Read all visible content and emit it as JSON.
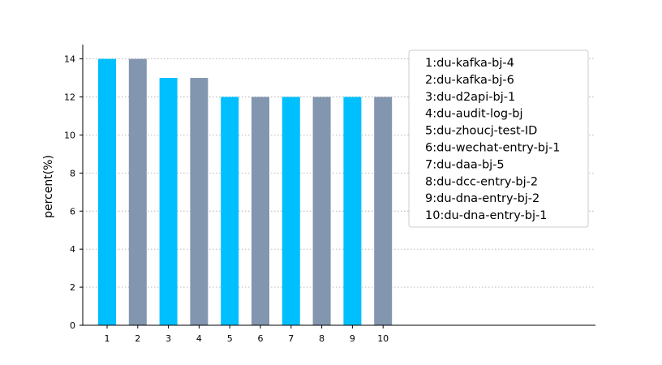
{
  "chart_data": {
    "type": "bar",
    "title": "",
    "xlabel": "",
    "ylabel": "percent(%)",
    "categories": [
      "1",
      "2",
      "3",
      "4",
      "5",
      "6",
      "7",
      "8",
      "9",
      "10"
    ],
    "values": [
      14,
      14,
      13,
      13,
      12,
      12,
      12,
      12,
      12,
      12
    ],
    "ylim": [
      0,
      14.75
    ],
    "yticks": [
      0,
      2,
      4,
      6,
      8,
      10,
      12,
      14
    ],
    "grid": "horizontal-dotted",
    "legend_position": "top-right",
    "legend": [
      "1:du-kafka-bj-4",
      "2:du-kafka-bj-6",
      "3:du-d2api-bj-1",
      "4:du-audit-log-bj",
      "5:du-zhoucj-test-ID",
      "6:du-wechat-entry-bj-1",
      "7:du-daa-bj-5",
      "8:du-dcc-entry-bj-2",
      "9:du-dna-entry-bj-2",
      "10:du-dna-entry-bj-1"
    ],
    "colors": {
      "odd_bars": "#00BFFF",
      "even_bars": "#8396AF",
      "grid": "#B0B0B0",
      "axis": "#000000",
      "legend_border": "#CCCCCC"
    }
  }
}
